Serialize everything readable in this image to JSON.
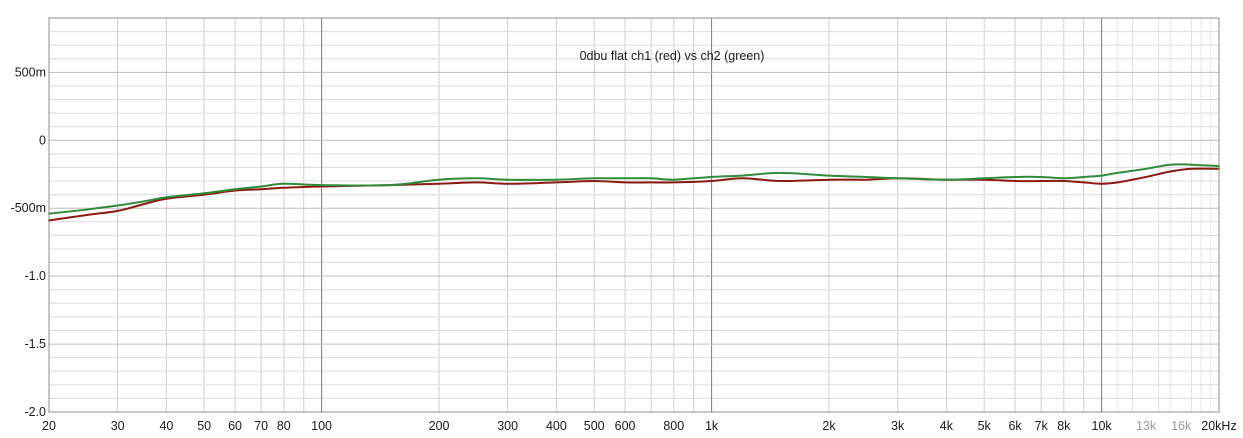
{
  "chart_data": {
    "type": "line",
    "title": "0dbu flat ch1 (red) vs ch2 (green)",
    "xlabel": "",
    "ylabel": "",
    "x_scale": "log",
    "xlim": [
      20,
      20000
    ],
    "ylim": [
      -2.0,
      0.9
    ],
    "grid": true,
    "x_ticks": [
      {
        "value": 20,
        "label": "20"
      },
      {
        "value": 30,
        "label": "30"
      },
      {
        "value": 40,
        "label": "40"
      },
      {
        "value": 50,
        "label": "50"
      },
      {
        "value": 60,
        "label": "60"
      },
      {
        "value": 70,
        "label": "70"
      },
      {
        "value": 80,
        "label": "80"
      },
      {
        "value": 100,
        "label": "100"
      },
      {
        "value": 200,
        "label": "200"
      },
      {
        "value": 300,
        "label": "300"
      },
      {
        "value": 400,
        "label": "400"
      },
      {
        "value": 500,
        "label": "500"
      },
      {
        "value": 600,
        "label": "600"
      },
      {
        "value": 800,
        "label": "800"
      },
      {
        "value": 1000,
        "label": "1k"
      },
      {
        "value": 2000,
        "label": "2k"
      },
      {
        "value": 3000,
        "label": "3k"
      },
      {
        "value": 4000,
        "label": "4k"
      },
      {
        "value": 5000,
        "label": "5k"
      },
      {
        "value": 6000,
        "label": "6k"
      },
      {
        "value": 7000,
        "label": "7k"
      },
      {
        "value": 8000,
        "label": "8k"
      },
      {
        "value": 10000,
        "label": "10k"
      },
      {
        "value": 13000,
        "label": "13k",
        "faded": true
      },
      {
        "value": 16000,
        "label": "16k",
        "faded": true
      },
      {
        "value": 20000,
        "label": "20kHz"
      }
    ],
    "y_ticks": [
      {
        "value": 0.5,
        "label": "500m"
      },
      {
        "value": 0,
        "label": "0"
      },
      {
        "value": -0.5,
        "label": "-500m"
      },
      {
        "value": -1.0,
        "label": "-1.0"
      },
      {
        "value": -1.5,
        "label": "-1.5"
      },
      {
        "value": -2.0,
        "label": "-2.0"
      }
    ],
    "series": [
      {
        "color": "#8b1a10",
        "x": [
          20,
          25,
          30,
          35,
          40,
          50,
          60,
          70,
          80,
          100,
          150,
          200,
          250,
          300,
          400,
          500,
          600,
          700,
          800,
          1000,
          1200,
          1500,
          2000,
          2500,
          3000,
          4000,
          5000,
          6000,
          7000,
          8000,
          9000,
          10000,
          11000,
          13000,
          15000,
          17000,
          20000
        ],
        "y": [
          -0.59,
          -0.55,
          -0.52,
          -0.47,
          -0.43,
          -0.4,
          -0.37,
          -0.36,
          -0.35,
          -0.34,
          -0.33,
          -0.32,
          -0.31,
          -0.32,
          -0.31,
          -0.3,
          -0.31,
          -0.31,
          -0.31,
          -0.3,
          -0.28,
          -0.3,
          -0.29,
          -0.29,
          -0.28,
          -0.29,
          -0.29,
          -0.3,
          -0.3,
          -0.3,
          -0.31,
          -0.32,
          -0.31,
          -0.27,
          -0.23,
          -0.21,
          -0.21
        ]
      },
      {
        "color": "#2e8b3a",
        "x": [
          20,
          25,
          30,
          35,
          40,
          50,
          60,
          70,
          80,
          100,
          150,
          200,
          250,
          300,
          400,
          500,
          600,
          700,
          800,
          1000,
          1200,
          1500,
          2000,
          2500,
          3000,
          4000,
          5000,
          6000,
          7000,
          8000,
          9000,
          10000,
          11000,
          13000,
          15000,
          17000,
          20000
        ],
        "y": [
          -0.54,
          -0.51,
          -0.48,
          -0.45,
          -0.42,
          -0.39,
          -0.36,
          -0.34,
          -0.32,
          -0.33,
          -0.33,
          -0.29,
          -0.28,
          -0.29,
          -0.29,
          -0.28,
          -0.28,
          -0.28,
          -0.29,
          -0.27,
          -0.26,
          -0.24,
          -0.26,
          -0.27,
          -0.28,
          -0.29,
          -0.28,
          -0.27,
          -0.27,
          -0.28,
          -0.27,
          -0.26,
          -0.24,
          -0.21,
          -0.18,
          -0.18,
          -0.19
        ]
      }
    ]
  }
}
